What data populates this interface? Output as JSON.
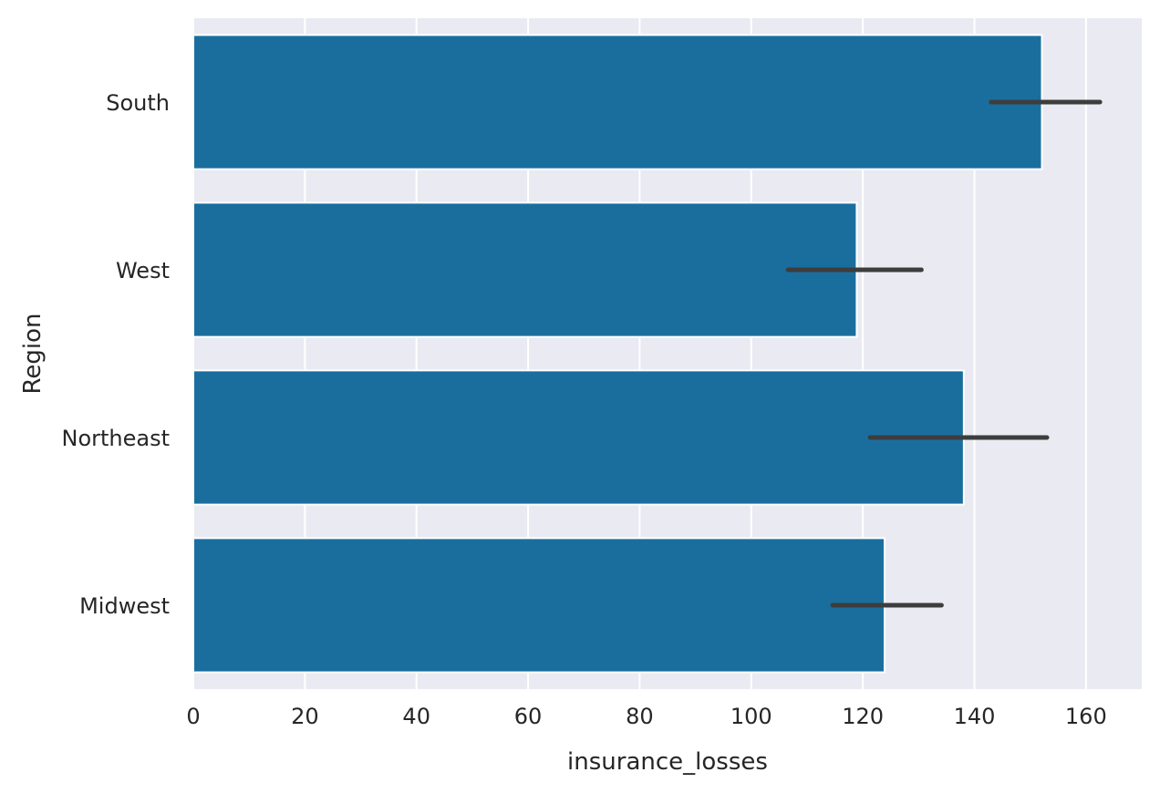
{
  "chart_data": {
    "type": "bar",
    "orientation": "horizontal",
    "title": "",
    "xlabel": "insurance_losses",
    "ylabel": "Region",
    "categories": [
      "South",
      "West",
      "Northeast",
      "Midwest"
    ],
    "values": [
      152.1,
      118.9,
      138.1,
      123.9
    ],
    "error_low": [
      143.0,
      106.6,
      121.3,
      114.6
    ],
    "error_high": [
      162.5,
      130.5,
      153.0,
      134.1
    ],
    "xlim": [
      0,
      170
    ],
    "xticks": [
      0,
      20,
      40,
      60,
      80,
      100,
      120,
      140,
      160
    ],
    "grid": true,
    "colors": {
      "bar": "#1a6e9e",
      "bar_edge": "#ffffff",
      "plot_background": "#eaeaf2",
      "grid": "#ffffff",
      "error_bar": "#3d3d3d"
    }
  }
}
